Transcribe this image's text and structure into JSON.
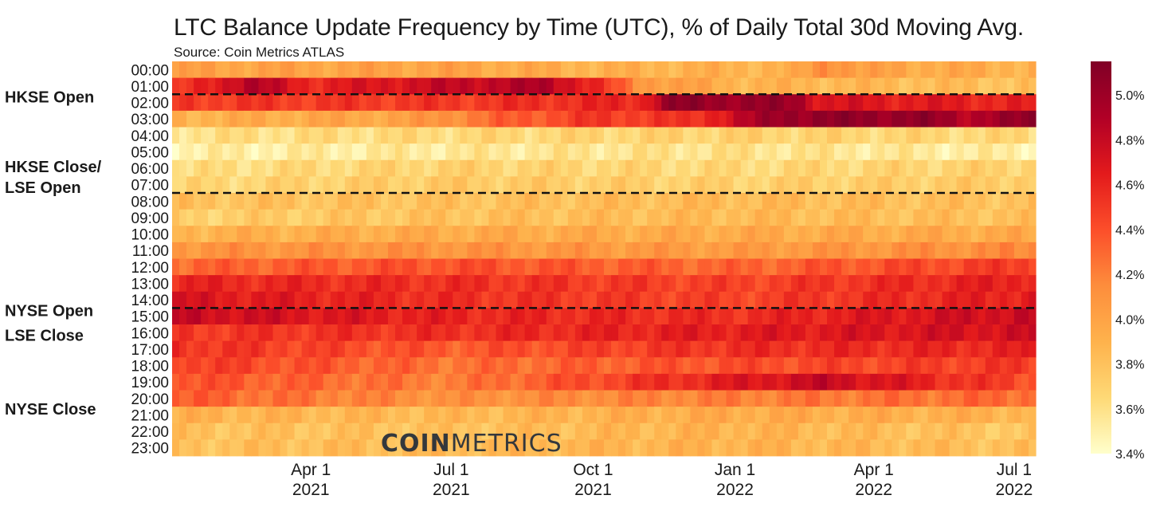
{
  "chart_data": {
    "type": "heatmap",
    "title": "LTC Balance Update Frequency by Time (UTC), % of Daily Total 30d Moving Avg.",
    "subtitle": "Source: Coin Metrics ATLAS",
    "watermark": {
      "bold": "COIN",
      "light": "METRICS"
    },
    "y_categories": [
      "00:00",
      "01:00",
      "02:00",
      "03:00",
      "04:00",
      "05:00",
      "06:00",
      "07:00",
      "08:00",
      "09:00",
      "10:00",
      "11:00",
      "12:00",
      "13:00",
      "14:00",
      "15:00",
      "16:00",
      "17:00",
      "18:00",
      "19:00",
      "20:00",
      "21:00",
      "22:00",
      "23:00"
    ],
    "x_range": [
      "2021-01-01",
      "2022-07-15"
    ],
    "x_ticks": [
      {
        "date": "2021-04-01",
        "line1": "Apr 1",
        "line2": "2021"
      },
      {
        "date": "2021-07-01",
        "line1": "Jul 1",
        "line2": "2021"
      },
      {
        "date": "2021-10-01",
        "line1": "Oct 1",
        "line2": "2021"
      },
      {
        "date": "2022-01-01",
        "line1": "Jan 1",
        "line2": "2022"
      },
      {
        "date": "2022-04-01",
        "line1": "Apr 1",
        "line2": "2022"
      },
      {
        "date": "2022-07-01",
        "line1": "Jul 1",
        "line2": "2022"
      }
    ],
    "colorbar": {
      "range": [
        3.4,
        5.15
      ],
      "ticks": [
        "3.4%",
        "3.6%",
        "3.8%",
        "4.0%",
        "4.2%",
        "4.4%",
        "4.6%",
        "4.8%",
        "5.0%"
      ],
      "colors": [
        "#ffffcc",
        "#fed976",
        "#feb24c",
        "#fd8d3c",
        "#fc4e2a",
        "#e31a1c",
        "#b10026",
        "#800026"
      ]
    },
    "market_events": [
      {
        "label": "HKSE Open",
        "hour_boundary": 2,
        "dashed_line": true
      },
      {
        "label": "HKSE Close/",
        "label2": "LSE Open",
        "hour_boundary": 8,
        "dashed_line": true
      },
      {
        "label": "NYSE Open",
        "hour_boundary": 15,
        "dashed_line": true
      },
      {
        "label": "LSE Close",
        "hour_boundary": 16.5,
        "dashed_line": false
      },
      {
        "label": "NYSE Close",
        "hour_boundary": 21,
        "dashed_line": false
      }
    ],
    "hour_profiles": [
      {
        "hour": "00:00",
        "keyframes": [
          [
            "2021-01-01",
            4.0
          ],
          [
            "2021-07-01",
            4.0
          ],
          [
            "2021-10-01",
            3.9
          ],
          [
            "2022-02-10",
            3.9
          ],
          [
            "2022-03-01",
            4.2
          ],
          [
            "2022-03-25",
            4.0
          ],
          [
            "2022-07-15",
            3.9
          ]
        ]
      },
      {
        "hour": "01:00",
        "keyframes": [
          [
            "2021-01-01",
            4.4
          ],
          [
            "2021-02-20",
            4.9
          ],
          [
            "2021-04-01",
            4.6
          ],
          [
            "2021-07-01",
            4.8
          ],
          [
            "2021-09-01",
            4.9
          ],
          [
            "2021-10-01",
            4.6
          ],
          [
            "2021-11-01",
            4.1
          ],
          [
            "2022-01-01",
            3.9
          ],
          [
            "2022-07-15",
            3.8
          ]
        ]
      },
      {
        "hour": "02:00",
        "keyframes": [
          [
            "2021-01-01",
            4.5
          ],
          [
            "2021-04-01",
            4.5
          ],
          [
            "2021-07-01",
            4.5
          ],
          [
            "2021-11-01",
            4.6
          ],
          [
            "2021-11-20",
            5.05
          ],
          [
            "2022-02-10",
            5.0
          ],
          [
            "2022-02-25",
            4.7
          ],
          [
            "2022-07-15",
            4.6
          ]
        ]
      },
      {
        "hour": "03:00",
        "keyframes": [
          [
            "2021-01-01",
            3.9
          ],
          [
            "2021-06-01",
            4.0
          ],
          [
            "2021-08-01",
            4.3
          ],
          [
            "2021-10-01",
            4.5
          ],
          [
            "2021-12-01",
            4.5
          ],
          [
            "2022-02-01",
            5.05
          ],
          [
            "2022-05-01",
            5.05
          ],
          [
            "2022-06-01",
            4.9
          ],
          [
            "2022-07-15",
            5.05
          ]
        ]
      },
      {
        "hour": "04:00",
        "keyframes": [
          [
            "2021-01-01",
            3.6
          ],
          [
            "2021-07-01",
            3.65
          ],
          [
            "2022-01-01",
            3.7
          ],
          [
            "2022-07-15",
            3.65
          ]
        ]
      },
      {
        "hour": "05:00",
        "keyframes": [
          [
            "2021-01-01",
            3.5
          ],
          [
            "2021-07-01",
            3.55
          ],
          [
            "2022-01-01",
            3.6
          ],
          [
            "2022-07-15",
            3.5
          ]
        ]
      },
      {
        "hour": "06:00",
        "keyframes": [
          [
            "2021-01-01",
            3.6
          ],
          [
            "2021-07-01",
            3.7
          ],
          [
            "2022-01-01",
            3.65
          ],
          [
            "2022-07-15",
            3.7
          ]
        ]
      },
      {
        "hour": "07:00",
        "keyframes": [
          [
            "2021-01-01",
            3.65
          ],
          [
            "2021-07-01",
            3.75
          ],
          [
            "2022-01-01",
            3.7
          ],
          [
            "2022-07-15",
            3.75
          ]
        ]
      },
      {
        "hour": "08:00",
        "keyframes": [
          [
            "2021-01-01",
            3.8
          ],
          [
            "2021-07-01",
            3.8
          ],
          [
            "2022-01-01",
            3.85
          ],
          [
            "2022-07-15",
            3.8
          ]
        ]
      },
      {
        "hour": "09:00",
        "keyframes": [
          [
            "2021-01-01",
            3.7
          ],
          [
            "2021-07-01",
            3.8
          ],
          [
            "2022-01-01",
            3.85
          ],
          [
            "2022-07-15",
            3.8
          ]
        ]
      },
      {
        "hour": "10:00",
        "keyframes": [
          [
            "2021-01-01",
            3.9
          ],
          [
            "2021-07-01",
            3.95
          ],
          [
            "2022-01-01",
            3.95
          ],
          [
            "2022-07-15",
            3.95
          ]
        ]
      },
      {
        "hour": "11:00",
        "keyframes": [
          [
            "2021-01-01",
            4.1
          ],
          [
            "2021-07-01",
            4.1
          ],
          [
            "2022-01-01",
            4.05
          ],
          [
            "2022-07-15",
            4.15
          ]
        ]
      },
      {
        "hour": "12:00",
        "keyframes": [
          [
            "2021-01-01",
            4.3
          ],
          [
            "2021-07-01",
            4.4
          ],
          [
            "2022-01-01",
            4.3
          ],
          [
            "2022-07-15",
            4.5
          ]
        ]
      },
      {
        "hour": "13:00",
        "keyframes": [
          [
            "2021-01-01",
            4.6
          ],
          [
            "2021-07-01",
            4.55
          ],
          [
            "2022-01-01",
            4.45
          ],
          [
            "2022-07-15",
            4.65
          ]
        ]
      },
      {
        "hour": "14:00",
        "keyframes": [
          [
            "2021-01-01",
            4.7
          ],
          [
            "2021-07-01",
            4.55
          ],
          [
            "2022-01-01",
            4.45
          ],
          [
            "2022-07-15",
            4.65
          ]
        ]
      },
      {
        "hour": "15:00",
        "keyframes": [
          [
            "2021-01-01",
            4.8
          ],
          [
            "2021-07-01",
            4.6
          ],
          [
            "2022-01-01",
            4.55
          ],
          [
            "2022-07-15",
            4.8
          ]
        ]
      },
      {
        "hour": "16:00",
        "keyframes": [
          [
            "2021-01-01",
            4.5
          ],
          [
            "2021-07-01",
            4.55
          ],
          [
            "2022-01-01",
            4.65
          ],
          [
            "2022-07-15",
            4.75
          ]
        ]
      },
      {
        "hour": "17:00",
        "keyframes": [
          [
            "2021-01-01",
            4.55
          ],
          [
            "2021-07-01",
            4.35
          ],
          [
            "2022-01-01",
            4.55
          ],
          [
            "2022-07-15",
            4.6
          ]
        ]
      },
      {
        "hour": "18:00",
        "keyframes": [
          [
            "2021-01-01",
            4.5
          ],
          [
            "2021-07-01",
            4.25
          ],
          [
            "2022-01-01",
            4.4
          ],
          [
            "2022-07-15",
            4.5
          ]
        ]
      },
      {
        "hour": "19:00",
        "keyframes": [
          [
            "2021-01-01",
            4.4
          ],
          [
            "2021-07-01",
            4.2
          ],
          [
            "2022-03-01",
            4.8
          ],
          [
            "2022-07-15",
            4.4
          ]
        ]
      },
      {
        "hour": "20:00",
        "keyframes": [
          [
            "2021-01-01",
            4.35
          ],
          [
            "2021-07-01",
            4.1
          ],
          [
            "2022-01-01",
            4.2
          ],
          [
            "2022-07-15",
            4.3
          ]
        ]
      },
      {
        "hour": "21:00",
        "keyframes": [
          [
            "2021-01-01",
            3.9
          ],
          [
            "2021-07-01",
            3.85
          ],
          [
            "2022-01-01",
            3.95
          ],
          [
            "2022-07-15",
            3.9
          ]
        ]
      },
      {
        "hour": "22:00",
        "keyframes": [
          [
            "2021-01-01",
            3.8
          ],
          [
            "2021-07-01",
            3.8
          ],
          [
            "2022-01-01",
            3.9
          ],
          [
            "2022-07-15",
            3.75
          ]
        ]
      },
      {
        "hour": "23:00",
        "keyframes": [
          [
            "2021-01-01",
            3.8
          ],
          [
            "2021-07-01",
            3.85
          ],
          [
            "2022-01-01",
            3.9
          ],
          [
            "2022-07-15",
            3.8
          ]
        ]
      }
    ]
  }
}
